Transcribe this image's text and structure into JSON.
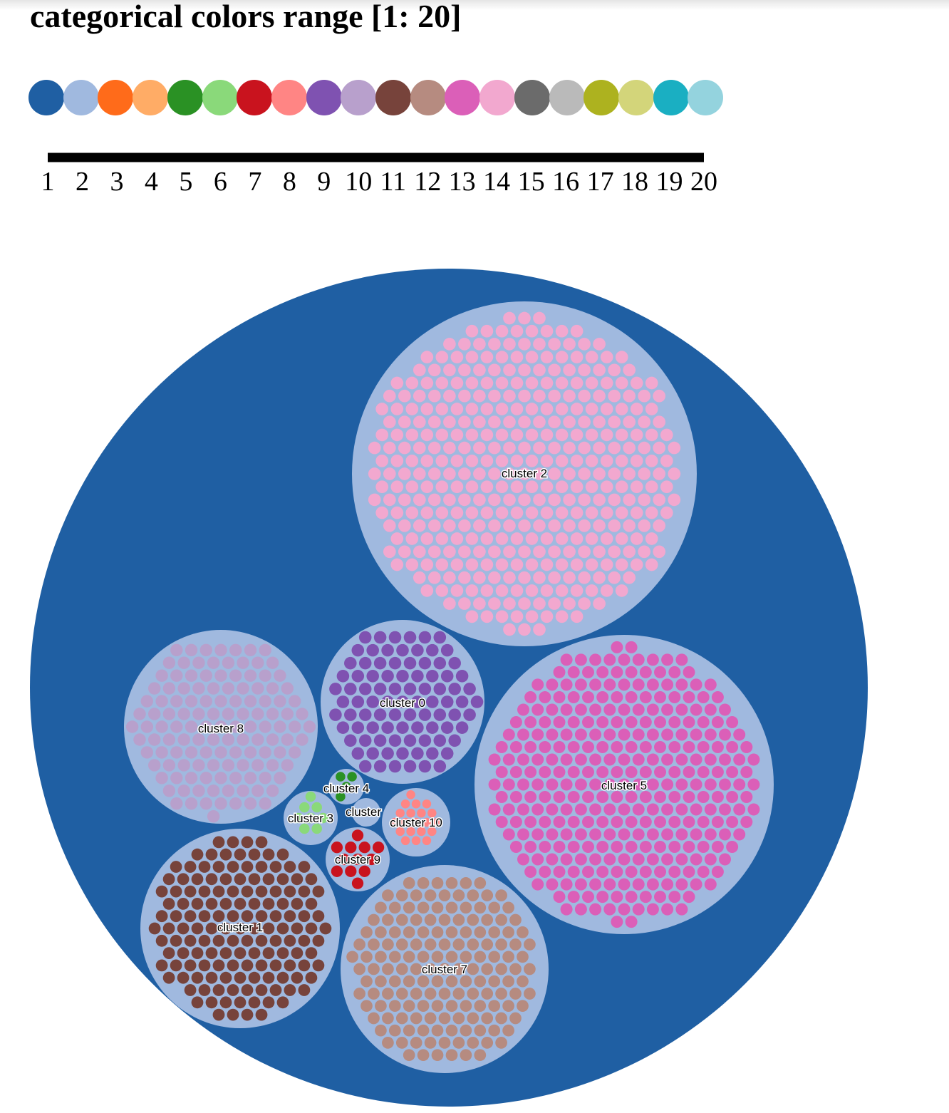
{
  "title": "categorical colors range [1: 20]",
  "palette": [
    "#1f5fa3",
    "#a0b9df",
    "#ff6b1a",
    "#ffac66",
    "#2a9124",
    "#8ad97a",
    "#c9131e",
    "#ff8584",
    "#7f52b1",
    "#b8a0cc",
    "#77433b",
    "#b68b80",
    "#db5fb8",
    "#f2a8cf",
    "#6b6b6b",
    "#bababa",
    "#adb21f",
    "#d3d57a",
    "#1aafc2",
    "#94d3de"
  ],
  "chart_data": [
    {
      "type": "legend-scale",
      "title": "categorical colors range [1: 20]",
      "categories": [
        "1",
        "2",
        "3",
        "4",
        "5",
        "6",
        "7",
        "8",
        "9",
        "10",
        "11",
        "12",
        "13",
        "14",
        "15",
        "16",
        "17",
        "18",
        "19",
        "20"
      ],
      "colors": [
        "#1f5fa3",
        "#a0b9df",
        "#ff6b1a",
        "#ffac66",
        "#2a9124",
        "#8ad97a",
        "#c9131e",
        "#ff8584",
        "#7f52b1",
        "#b8a0cc",
        "#77433b",
        "#b68b80",
        "#db5fb8",
        "#f2a8cf",
        "#6b6b6b",
        "#bababa",
        "#adb21f",
        "#d3d57a",
        "#1aafc2",
        "#94d3de"
      ],
      "domain": [
        1,
        20
      ]
    },
    {
      "type": "circle-packing",
      "root_color_index": 1,
      "cluster_fill_index": 2,
      "clusters": [
        {
          "name": "cluster 2",
          "leaves": 394,
          "color_index": 14
        },
        {
          "name": "cluster 5",
          "leaves": 321,
          "color_index": 13
        },
        {
          "name": "cluster 7",
          "leaves": 160,
          "color_index": 12
        },
        {
          "name": "cluster 1",
          "leaves": 146,
          "color_index": 11
        },
        {
          "name": "cluster 8",
          "leaves": 128,
          "color_index": 10
        },
        {
          "name": "cluster 0",
          "leaves": 90,
          "color_index": 9
        },
        {
          "name": "cluster 10",
          "leaves": 20,
          "color_index": 8
        },
        {
          "name": "cluster 9",
          "leaves": 12,
          "color_index": 7
        },
        {
          "name": "cluster 3",
          "leaves": 8,
          "color_index": 6
        },
        {
          "name": "cluster 4",
          "leaves": 4,
          "color_index": 5
        },
        {
          "name": "cluster",
          "leaves": 3,
          "color_index": 4
        }
      ]
    }
  ]
}
